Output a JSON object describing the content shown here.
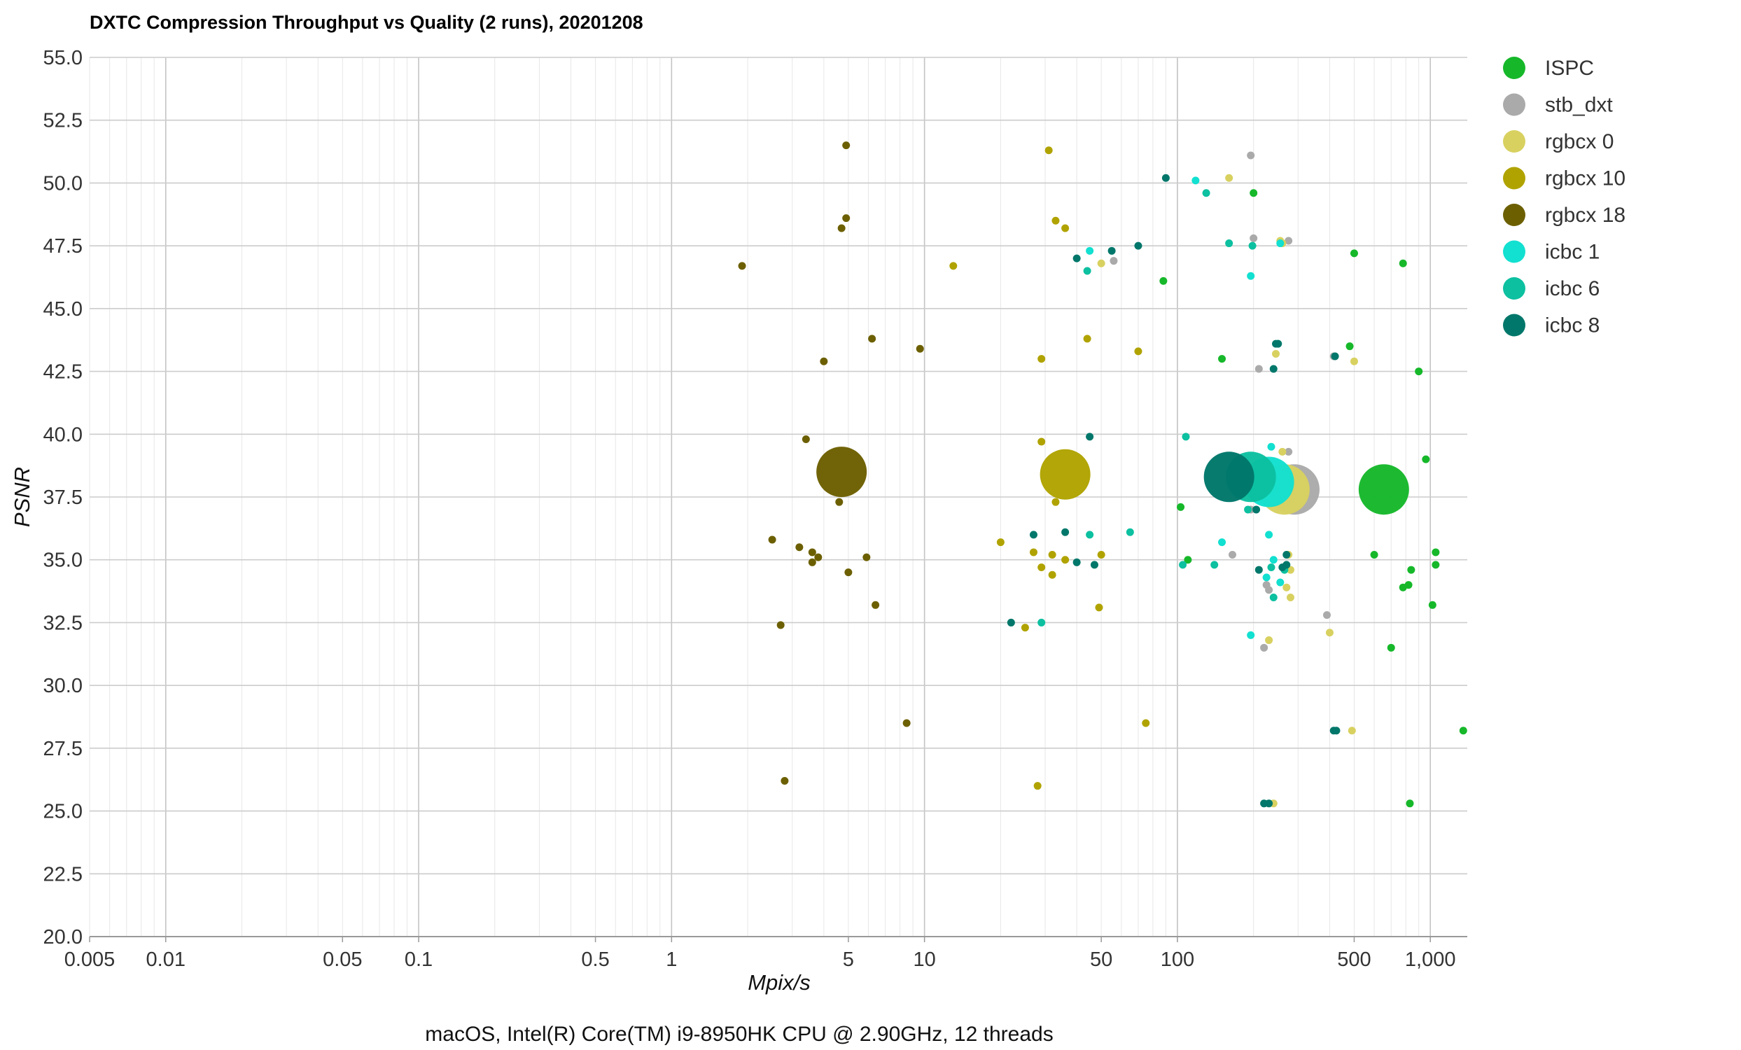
{
  "chart_data": {
    "type": "scatter",
    "title": "DXTC Compression Throughput vs Quality (2 runs), 20201208",
    "footnote": "macOS, Intel(R) Core(TM) i9-8950HK CPU @ 2.90GHz, 12 threads",
    "xlabel": "Mpix/s",
    "ylabel": "PSNR",
    "x_scale": "log",
    "xlim": [
      0.005,
      1400
    ],
    "ylim": [
      20,
      55
    ],
    "grid": true,
    "legend_position": "right",
    "x_ticks": [
      {
        "value": 0.005,
        "label": "0.005"
      },
      {
        "value": 0.01,
        "label": "0.01"
      },
      {
        "value": 0.05,
        "label": "0.05"
      },
      {
        "value": 0.1,
        "label": "0.1"
      },
      {
        "value": 0.5,
        "label": "0.5"
      },
      {
        "value": 1,
        "label": "1"
      },
      {
        "value": 5,
        "label": "5"
      },
      {
        "value": 10,
        "label": "10"
      },
      {
        "value": 50,
        "label": "50"
      },
      {
        "value": 100,
        "label": "100"
      },
      {
        "value": 500,
        "label": "500"
      },
      {
        "value": 1000,
        "label": "1,000"
      }
    ],
    "y_ticks": [
      {
        "value": 20,
        "label": "20.0"
      },
      {
        "value": 22.5,
        "label": "22.5"
      },
      {
        "value": 25,
        "label": "25.0"
      },
      {
        "value": 27.5,
        "label": "27.5"
      },
      {
        "value": 30,
        "label": "30.0"
      },
      {
        "value": 32.5,
        "label": "32.5"
      },
      {
        "value": 35,
        "label": "35.0"
      },
      {
        "value": 37.5,
        "label": "37.5"
      },
      {
        "value": 40,
        "label": "40.0"
      },
      {
        "value": 42.5,
        "label": "42.5"
      },
      {
        "value": 45,
        "label": "45.0"
      },
      {
        "value": 47.5,
        "label": "47.5"
      },
      {
        "value": 50,
        "label": "50.0"
      },
      {
        "value": 52.5,
        "label": "52.5"
      },
      {
        "value": 55,
        "label": "55.0"
      }
    ],
    "series": [
      {
        "name": "ISPC",
        "color": "#16b82a",
        "summary": [
          655,
          37.8
        ],
        "points": [
          [
            150,
            43.0
          ],
          [
            200,
            49.6
          ],
          [
            88,
            46.1
          ],
          [
            500,
            47.2
          ],
          [
            780,
            46.8
          ],
          [
            480,
            43.5
          ],
          [
            900,
            42.5
          ],
          [
            960,
            39.0
          ],
          [
            103,
            37.1
          ],
          [
            110,
            35.0
          ],
          [
            600,
            35.2
          ],
          [
            1050,
            35.3
          ],
          [
            1050,
            34.8
          ],
          [
            840,
            34.6
          ],
          [
            820,
            34.0
          ],
          [
            780,
            33.9
          ],
          [
            1020,
            33.2
          ],
          [
            700,
            31.5
          ],
          [
            1350,
            28.2
          ],
          [
            830,
            25.3
          ]
        ]
      },
      {
        "name": "stb_dxt",
        "color": "#aaaaaa",
        "summary": [
          290,
          37.8
        ],
        "points": [
          [
            195,
            51.1
          ],
          [
            200,
            47.8
          ],
          [
            275,
            47.7
          ],
          [
            56,
            46.9
          ],
          [
            210,
            42.6
          ],
          [
            415,
            43.1
          ],
          [
            275,
            39.3
          ],
          [
            195,
            37.0
          ],
          [
            165,
            35.2
          ],
          [
            225,
            34.0
          ],
          [
            230,
            33.8
          ],
          [
            390,
            32.8
          ],
          [
            220,
            31.5
          ]
        ]
      },
      {
        "name": "rgbcx 0",
        "color": "#d8d160",
        "summary": [
          265,
          37.8
        ],
        "points": [
          [
            160,
            50.2
          ],
          [
            255,
            47.7
          ],
          [
            260,
            47.6
          ],
          [
            50,
            46.8
          ],
          [
            245,
            43.2
          ],
          [
            500,
            42.9
          ],
          [
            260,
            39.3
          ],
          [
            275,
            35.2
          ],
          [
            280,
            34.6
          ],
          [
            270,
            33.9
          ],
          [
            280,
            33.5
          ],
          [
            400,
            32.1
          ],
          [
            230,
            31.8
          ],
          [
            490,
            28.2
          ],
          [
            240,
            25.3
          ]
        ]
      },
      {
        "name": "rgbcx 10",
        "color": "#b0a300",
        "summary": [
          36,
          38.4
        ],
        "points": [
          [
            31,
            51.3
          ],
          [
            33,
            48.5
          ],
          [
            36,
            48.2
          ],
          [
            13,
            46.7
          ],
          [
            44,
            43.8
          ],
          [
            29,
            43.0
          ],
          [
            70,
            43.3
          ],
          [
            29,
            39.7
          ],
          [
            33,
            37.3
          ],
          [
            20,
            35.7
          ],
          [
            27,
            35.3
          ],
          [
            32,
            35.2
          ],
          [
            36,
            35.0
          ],
          [
            50,
            35.2
          ],
          [
            29,
            34.7
          ],
          [
            32,
            34.4
          ],
          [
            25,
            32.3
          ],
          [
            49,
            33.1
          ],
          [
            75,
            28.5
          ],
          [
            28,
            26.0
          ]
        ]
      },
      {
        "name": "rgbcx 18",
        "color": "#6c5f00",
        "summary": [
          4.7,
          38.5
        ],
        "points": [
          [
            4.9,
            51.5
          ],
          [
            4.9,
            48.6
          ],
          [
            4.7,
            48.2
          ],
          [
            1.9,
            46.7
          ],
          [
            6.2,
            43.8
          ],
          [
            4.0,
            42.9
          ],
          [
            9.6,
            43.4
          ],
          [
            3.4,
            39.8
          ],
          [
            4.6,
            37.3
          ],
          [
            2.5,
            35.8
          ],
          [
            3.2,
            35.5
          ],
          [
            3.6,
            35.3
          ],
          [
            3.8,
            35.1
          ],
          [
            5.9,
            35.1
          ],
          [
            3.6,
            34.9
          ],
          [
            5.0,
            34.5
          ],
          [
            6.4,
            33.2
          ],
          [
            2.7,
            32.4
          ],
          [
            8.5,
            28.5
          ],
          [
            2.8,
            26.2
          ]
        ]
      },
      {
        "name": "icbc 1",
        "color": "#12e0d0",
        "summary": [
          230,
          38.1
        ],
        "points": [
          [
            118,
            50.1
          ],
          [
            255,
            47.6
          ],
          [
            45,
            47.3
          ],
          [
            195,
            46.3
          ],
          [
            235,
            39.5
          ],
          [
            230,
            36.0
          ],
          [
            150,
            35.7
          ],
          [
            240,
            35.0
          ],
          [
            225,
            34.3
          ],
          [
            255,
            34.1
          ],
          [
            195,
            32.0
          ]
        ]
      },
      {
        "name": "icbc 6",
        "color": "#0cc0a0",
        "summary": [
          195,
          38.3
        ],
        "points": [
          [
            130,
            49.6
          ],
          [
            160,
            47.6
          ],
          [
            198,
            47.5
          ],
          [
            44,
            46.5
          ],
          [
            250,
            43.6
          ],
          [
            108,
            39.9
          ],
          [
            65,
            36.1
          ],
          [
            45,
            36.0
          ],
          [
            140,
            34.8
          ],
          [
            105,
            34.8
          ],
          [
            235,
            34.7
          ],
          [
            265,
            34.6
          ],
          [
            240,
            33.5
          ],
          [
            29,
            32.5
          ],
          [
            190,
            37.0
          ]
        ]
      },
      {
        "name": "icbc 8",
        "color": "#00776a",
        "summary": [
          160,
          38.3
        ],
        "points": [
          [
            90,
            50.2
          ],
          [
            70,
            47.5
          ],
          [
            55,
            47.3
          ],
          [
            40,
            47.0
          ],
          [
            245,
            43.6
          ],
          [
            250,
            43.6
          ],
          [
            240,
            42.6
          ],
          [
            420,
            43.1
          ],
          [
            45,
            39.9
          ],
          [
            205,
            37.0
          ],
          [
            27,
            36.0
          ],
          [
            36,
            36.1
          ],
          [
            40,
            34.9
          ],
          [
            47,
            34.8
          ],
          [
            210,
            34.6
          ],
          [
            270,
            35.2
          ],
          [
            270,
            34.8
          ],
          [
            260,
            34.7
          ],
          [
            22,
            32.5
          ],
          [
            415,
            28.2
          ],
          [
            425,
            28.2
          ],
          [
            220,
            25.3
          ],
          [
            230,
            25.3
          ]
        ]
      }
    ]
  }
}
